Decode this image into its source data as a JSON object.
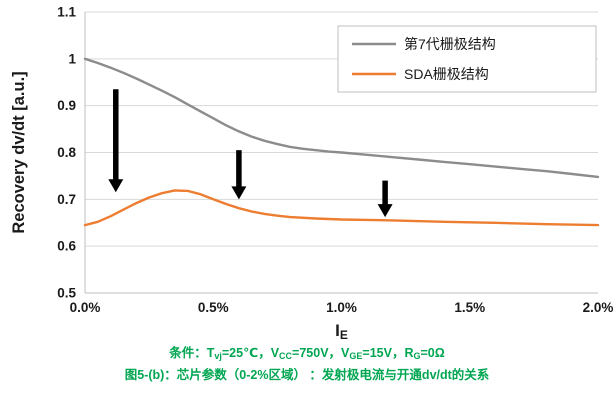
{
  "chart_data": {
    "type": "line",
    "title": "",
    "ylabel": "Recovery dv/dt [a.u.]",
    "xlabel": {
      "main": "I",
      "sub": "E"
    },
    "xlim": [
      0,
      2
    ],
    "ylim": [
      0.5,
      1.1
    ],
    "grid": "horizontal",
    "legend_position": "top-right",
    "y_ticks": [
      {
        "v": 0.5,
        "label": "0.5"
      },
      {
        "v": 0.6,
        "label": "0.6"
      },
      {
        "v": 0.7,
        "label": "0.7"
      },
      {
        "v": 0.8,
        "label": "0.8"
      },
      {
        "v": 0.9,
        "label": "0.9"
      },
      {
        "v": 1.0,
        "label": "1"
      },
      {
        "v": 1.1,
        "label": "1.1"
      }
    ],
    "x_ticks": [
      {
        "v": 0.0,
        "label": "0.0%"
      },
      {
        "v": 0.5,
        "label": "0.5%"
      },
      {
        "v": 1.0,
        "label": "1.0%"
      },
      {
        "v": 1.5,
        "label": "1.5%"
      },
      {
        "v": 2.0,
        "label": "2.0%"
      }
    ],
    "series": [
      {
        "name": "第7代栅极结构",
        "color": "#8c8c8c",
        "x": [
          0,
          0.05,
          0.1,
          0.15,
          0.2,
          0.25,
          0.3,
          0.35,
          0.4,
          0.45,
          0.5,
          0.55,
          0.6,
          0.65,
          0.7,
          0.75,
          0.8,
          0.85,
          0.9,
          0.95,
          1.0,
          1.1,
          1.2,
          1.3,
          1.4,
          1.5,
          1.6,
          1.7,
          1.8,
          1.9,
          2.0
        ],
        "y": [
          1.0,
          0.991,
          0.981,
          0.97,
          0.958,
          0.945,
          0.932,
          0.918,
          0.903,
          0.888,
          0.873,
          0.858,
          0.845,
          0.834,
          0.825,
          0.818,
          0.812,
          0.808,
          0.805,
          0.802,
          0.8,
          0.795,
          0.79,
          0.785,
          0.78,
          0.775,
          0.77,
          0.765,
          0.76,
          0.754,
          0.748
        ]
      },
      {
        "name": "SDA栅极结构",
        "color": "#ED7D31",
        "x": [
          0,
          0.05,
          0.1,
          0.15,
          0.2,
          0.25,
          0.3,
          0.35,
          0.4,
          0.45,
          0.5,
          0.55,
          0.6,
          0.65,
          0.7,
          0.75,
          0.8,
          0.9,
          1.0,
          1.1,
          1.2,
          1.4,
          1.6,
          1.8,
          2.0
        ],
        "y": [
          0.645,
          0.652,
          0.664,
          0.678,
          0.692,
          0.704,
          0.713,
          0.719,
          0.718,
          0.711,
          0.7,
          0.69,
          0.681,
          0.674,
          0.669,
          0.665,
          0.662,
          0.659,
          0.657,
          0.656,
          0.655,
          0.652,
          0.65,
          0.647,
          0.645
        ]
      }
    ],
    "annotations": {
      "arrows": [
        {
          "x": 0.12,
          "y_from": 0.935,
          "y_to": 0.715
        },
        {
          "x": 0.6,
          "y_from": 0.805,
          "y_to": 0.7
        },
        {
          "x": 1.17,
          "y_from": 0.74,
          "y_to": 0.662
        }
      ]
    }
  },
  "captions": {
    "condition_segments": [
      {
        "t": "条件：T"
      },
      {
        "t": "vj",
        "sub": true
      },
      {
        "t": "=25℃，V"
      },
      {
        "t": "CC",
        "sub": true
      },
      {
        "t": "=750V，V"
      },
      {
        "t": "GE",
        "sub": true
      },
      {
        "t": "=15V，R"
      },
      {
        "t": "G",
        "sub": true
      },
      {
        "t": "=0Ω"
      }
    ],
    "figure_segments": [
      {
        "t": "图5-(b)：芯片参数（0-2%区域） ：发射极电流与开通dv/dt的关系"
      }
    ]
  },
  "colors": {
    "grid": "#d9d9d9",
    "axis": "#bfbfbf",
    "tick_text": "#1a1a1a",
    "arrow": "#000000",
    "legend_border": "#bfbfbf",
    "legend_text": "#1a1a1a",
    "caption_green": "#00a651"
  }
}
